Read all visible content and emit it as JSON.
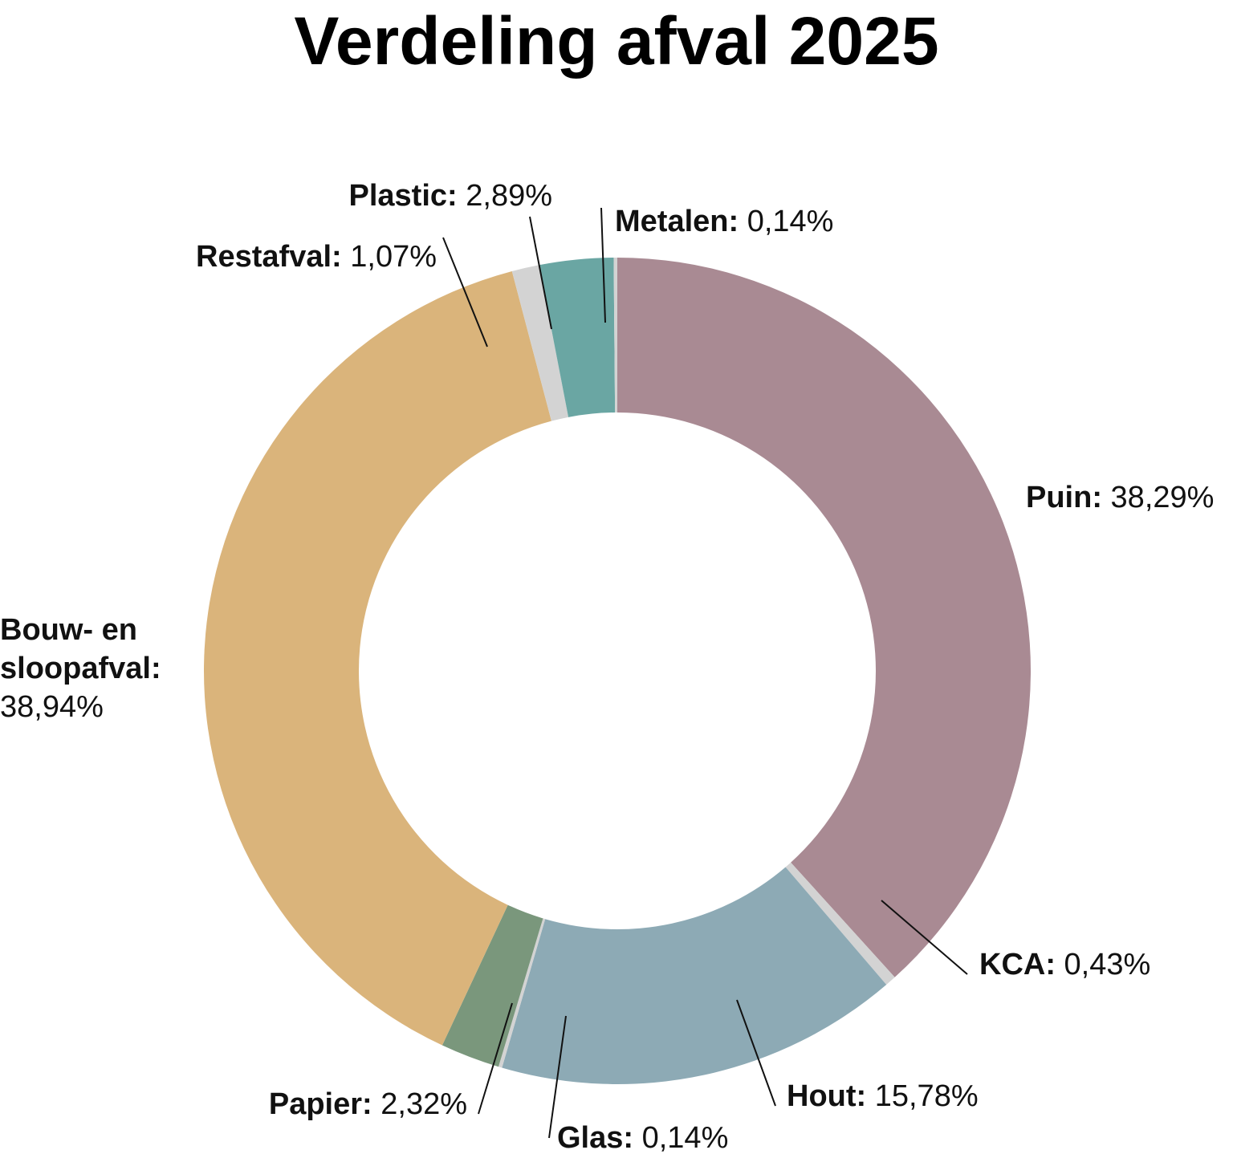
{
  "chart_data": {
    "type": "pie",
    "variant": "donut",
    "title": "Verdeling afval 2025",
    "slices": [
      {
        "label": "Puin",
        "value_text": "38,29%",
        "value": 38.29,
        "color": "#A98A93"
      },
      {
        "label": "KCA",
        "value_text": "0,43%",
        "value": 0.43,
        "color": "#D3D3D3"
      },
      {
        "label": "Hout",
        "value_text": "15,78%",
        "value": 15.78,
        "color": "#8DAAB5"
      },
      {
        "label": "Glas",
        "value_text": "0,14%",
        "value": 0.14,
        "color": "#D3D3D3"
      },
      {
        "label": "Papier",
        "value_text": "2,32%",
        "value": 2.32,
        "color": "#7A977C"
      },
      {
        "label": "Bouw- en sloopafval",
        "label_lines": [
          "Bouw- en",
          "sloopafval:"
        ],
        "value_text": "38,94%",
        "value": 38.94,
        "color": "#DAB47B"
      },
      {
        "label": "Restafval",
        "value_text": "1,07%",
        "value": 1.07,
        "color": "#D3D3D3"
      },
      {
        "label": "Plastic",
        "value_text": "2,89%",
        "value": 2.89,
        "color": "#6AA6A3"
      },
      {
        "label": "Metalen",
        "value_text": "0,14%",
        "value": 0.14,
        "color": "#D3D3D3"
      }
    ]
  }
}
